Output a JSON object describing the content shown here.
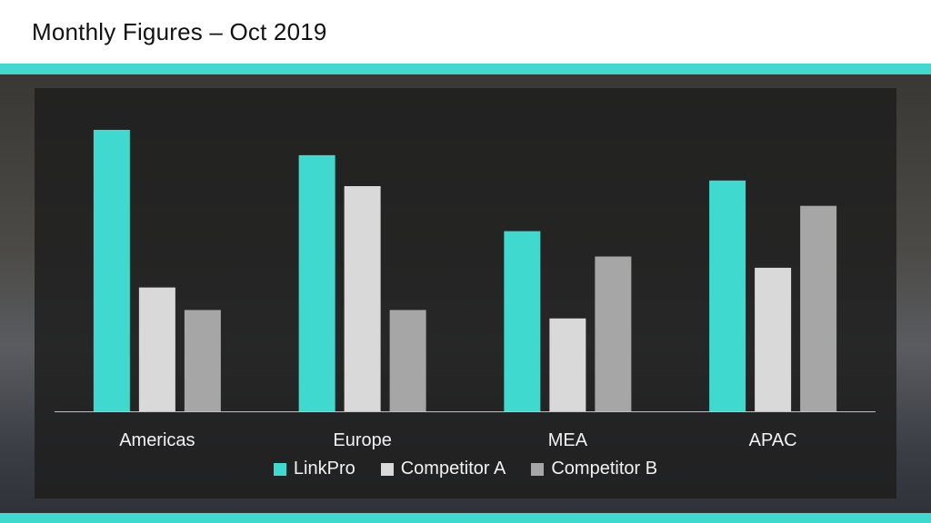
{
  "title": "Monthly Figures – Oct 2019",
  "colors": {
    "accent": "#40d9d0",
    "competitor_a": "#d9d9d9",
    "competitor_b": "#a6a6a6",
    "axis_line": "#bfbfbf",
    "label": "#f2f2f2"
  },
  "chart_data": {
    "type": "bar",
    "categories": [
      "Americas",
      "Europe",
      "MEA",
      "APAC"
    ],
    "series": [
      {
        "name": "LinkPro",
        "color": "#40d9d0",
        "values": [
          100,
          91,
          64,
          82
        ]
      },
      {
        "name": "Competitor A",
        "color": "#d9d9d9",
        "values": [
          44,
          80,
          33,
          51
        ]
      },
      {
        "name": "Competitor B",
        "color": "#a6a6a6",
        "values": [
          36,
          36,
          55,
          73
        ]
      }
    ],
    "ylim": [
      0,
      100
    ],
    "grid": false,
    "legend_position": "bottom"
  }
}
